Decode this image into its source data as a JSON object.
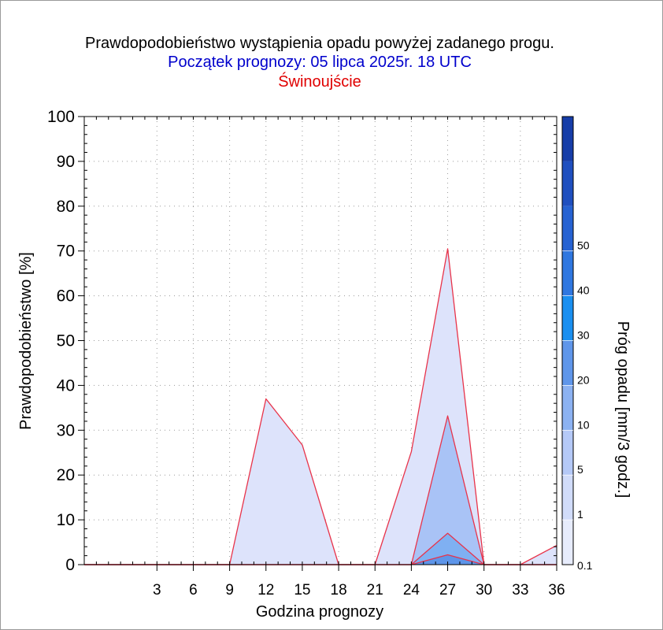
{
  "chart_data": {
    "type": "area",
    "title": "Prawdopodobieństwo wystąpienia opadu powyżej zadanego progu.",
    "subtitle": "Początek prognozy: 05 lipca 2025r. 18 UTC",
    "location": "Świnoujście",
    "xlabel": "Godzina prognozy",
    "ylabel": "Prawdopodobieństwo [%]",
    "colorbar_label": "Próg opadu [mm/3 godz.]",
    "xlim": [
      -3,
      36
    ],
    "ylim": [
      0,
      100
    ],
    "x_ticks": [
      "3",
      "6",
      "9",
      "12",
      "15",
      "18",
      "21",
      "24",
      "27",
      "30",
      "33",
      "36"
    ],
    "y_ticks": [
      "0",
      "10",
      "20",
      "30",
      "40",
      "50",
      "60",
      "70",
      "80",
      "90",
      "100"
    ],
    "grid": true,
    "x": [
      -3,
      0,
      3,
      6,
      9,
      12,
      15,
      18,
      21,
      24,
      27,
      30,
      33,
      36
    ],
    "series": [
      {
        "threshold": "0.1",
        "color": "#dde3fb",
        "values": [
          0,
          0,
          0,
          0,
          0,
          37,
          26.7,
          0,
          0,
          25.2,
          70.5,
          0,
          0,
          4.3
        ]
      },
      {
        "threshold": "1",
        "color": "#a9c3f6",
        "values": [
          0,
          0,
          0,
          0,
          0,
          0,
          0,
          0,
          0,
          0,
          33.2,
          0,
          0,
          0
        ]
      },
      {
        "threshold": "5",
        "color": "#7fb0f2",
        "values": [
          0,
          0,
          0,
          0,
          0,
          0,
          0,
          0,
          0,
          0,
          7,
          0,
          0,
          0
        ]
      },
      {
        "threshold": "10",
        "color": "#5d95e9",
        "values": [
          0,
          0,
          0,
          0,
          0,
          0,
          0,
          0,
          0,
          0,
          2.2,
          0,
          0,
          0
        ]
      }
    ],
    "line_color": "#e8334a",
    "colorbar": {
      "labels": [
        "0.1",
        "1",
        "5",
        "10",
        "20",
        "30",
        "40",
        "50"
      ],
      "colors": [
        "#e7ecfc",
        "#d1dcfa",
        "#b5c9f7",
        "#8cb2f2",
        "#5f96ea",
        "#1a8ff0",
        "#2f77e0",
        "#2662d2",
        "#1f4fbf",
        "#163da8"
      ]
    }
  }
}
